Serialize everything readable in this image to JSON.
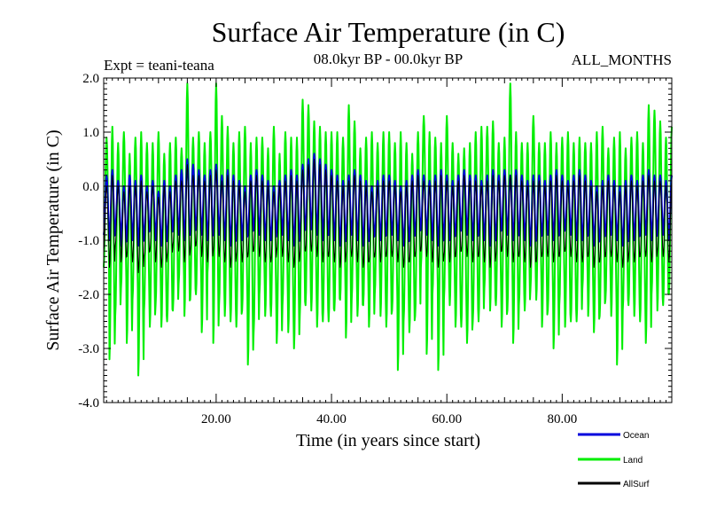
{
  "header": {
    "title": "Surface Air Temperature (in C)",
    "expt": "Expt = teani-teana",
    "period": "08.0kyr BP - 00.0kyr BP",
    "months": "ALL_MONTHS"
  },
  "chart_data": {
    "type": "line",
    "title": "Surface Air Temperature (in C)",
    "xlabel": "Time (in years since start)",
    "ylabel": "Surface Air Temperature (in C)",
    "xlim": [
      0.5,
      99
    ],
    "ylim": [
      -4.0,
      2.0
    ],
    "x_ticks": [
      20,
      40,
      60,
      80
    ],
    "x_tick_labels": [
      "20.00",
      "40.00",
      "60.00",
      "80.00"
    ],
    "y_ticks": [
      -4,
      -3,
      -2,
      -1,
      0,
      1,
      2
    ],
    "y_tick_labels": [
      "-4.0",
      "-3.0",
      "-2.0",
      "-1.0",
      "0.0",
      "1.0",
      "2.0"
    ],
    "zero_line": true,
    "samples_per_year": 12,
    "series": [
      {
        "name": "Land",
        "color": "#00ee00",
        "peaks": [
          0.9,
          1.1,
          0.8,
          1.0,
          0.6,
          0.9,
          1.0,
          0.8,
          0.8,
          1.0,
          0.6,
          0.8,
          0.9,
          0.7,
          1.9,
          0.9,
          1.0,
          0.8,
          1.0,
          1.9,
          1.3,
          1.1,
          0.8,
          1.0,
          1.1,
          0.8,
          0.9,
          0.9,
          0.7,
          1.1,
          0.6,
          1.0,
          0.9,
          0.9,
          1.6,
          1.5,
          1.2,
          1.1,
          1.0,
          1.0,
          1.0,
          0.9,
          1.5,
          1.2,
          0.7,
          0.9,
          1.0,
          0.8,
          1.0,
          1.0,
          0.8,
          1.0,
          0.8,
          0.6,
          1.0,
          1.3,
          1.0,
          0.9,
          0.8,
          1.3,
          0.8,
          0.6,
          0.7,
          0.8,
          1.0,
          1.1,
          1.1,
          1.2,
          0.8,
          0.9,
          1.9,
          1.0,
          0.8,
          0.8,
          1.3,
          0.8,
          0.8,
          1.0,
          0.8,
          0.9,
          1.0,
          0.8,
          0.9,
          0.8,
          0.8,
          1.0,
          1.1,
          0.7,
          0.9,
          1.0,
          0.7,
          0.9,
          1.0,
          0.8,
          1.5,
          1.4,
          1.2,
          0.9,
          1.1
        ],
        "troughs": [
          -1.5,
          -3.2,
          -2.4,
          -1.9,
          -2.9,
          -2.1,
          -3.5,
          -2.3,
          -2.6,
          -2.2,
          -2.6,
          -2.5,
          -2.3,
          -1.8,
          -2.4,
          -2.1,
          -2.0,
          -2.7,
          -1.6,
          -2.9,
          -2.2,
          -2.4,
          -2.5,
          -2.6,
          -2.3,
          -3.3,
          -2.7,
          -2.0,
          -2.4,
          -2.4,
          -2.9,
          -2.2,
          -2.7,
          -3.0,
          -2.4,
          -2.2,
          -2.3,
          -2.6,
          -2.5,
          -2.5,
          -2.3,
          -2.1,
          -2.8,
          -2.1,
          -2.4,
          -2.2,
          -2.6,
          -2.0,
          -2.4,
          -2.6,
          -2.3,
          -3.4,
          -2.5,
          -2.7,
          -2.4,
          -1.5,
          -3.1,
          -2.0,
          -3.4,
          -2.1,
          -2.2,
          -2.6,
          -2.6,
          -2.9,
          -2.5,
          -2.5,
          -1.9,
          -2.3,
          -2.2,
          -2.6,
          -2.3,
          -2.9,
          -2.2,
          -2.3,
          -1.9,
          -2.1,
          -2.6,
          -2.3,
          -3.0,
          -2.2,
          -2.6,
          -2.5,
          -2.5,
          -1.9,
          -2.4,
          -2.7,
          -2.4,
          -2.1,
          -2.4,
          -3.3,
          -2.3,
          -2.2,
          -2.4,
          -2.5,
          -2.9,
          -2.0,
          -2.3,
          -2.2,
          -2.0
        ]
      },
      {
        "name": "Ocean",
        "color": "#0000dd",
        "peaks": [
          0.2,
          0.3,
          0.1,
          0.0,
          0.2,
          0.1,
          0.2,
          0.0,
          0.1,
          -0.1,
          0.1,
          0.0,
          0.2,
          0.3,
          0.5,
          0.4,
          0.3,
          0.2,
          0.3,
          0.4,
          0.2,
          0.3,
          0.2,
          0.1,
          0.0,
          0.2,
          0.3,
          0.2,
          0.1,
          0.0,
          0.1,
          0.2,
          0.3,
          0.2,
          0.4,
          0.5,
          0.6,
          0.5,
          0.4,
          0.3,
          0.2,
          0.1,
          0.2,
          0.3,
          0.2,
          0.1,
          0.0,
          0.1,
          0.2,
          0.2,
          0.1,
          0.0,
          0.1,
          0.2,
          0.3,
          0.2,
          0.1,
          0.2,
          0.3,
          0.2,
          0.1,
          0.2,
          0.3,
          0.2,
          0.2,
          0.1,
          0.2,
          0.3,
          0.2,
          0.3,
          0.2,
          0.3,
          0.2,
          0.1,
          0.2,
          0.2,
          0.1,
          0.2,
          0.3,
          0.2,
          0.1,
          0.2,
          0.3,
          0.2,
          0.1,
          0.0,
          0.1,
          0.2,
          0.1,
          0.0,
          0.1,
          0.2,
          0.1,
          0.2,
          0.3,
          0.2,
          0.2,
          0.1,
          0.2
        ],
        "troughs": [
          -0.9,
          -1.0,
          -0.8,
          -1.1,
          -0.9,
          -1.0,
          -1.1,
          -0.9,
          -0.8,
          -1.0,
          -1.1,
          -0.9,
          -0.8,
          -0.9,
          -1.0,
          -0.9,
          -0.8,
          -0.9,
          -1.0,
          -0.8,
          -0.9,
          -1.0,
          -1.1,
          -0.9,
          -1.0,
          -0.9,
          -0.8,
          -0.9,
          -1.0,
          -1.0,
          -0.8,
          -0.9,
          -1.0,
          -1.1,
          -0.9,
          -0.8,
          -0.8,
          -0.9,
          -1.0,
          -0.9,
          -1.0,
          -1.1,
          -0.9,
          -0.9,
          -1.0,
          -1.1,
          -1.0,
          -0.9,
          -1.0,
          -0.9,
          -0.9,
          -1.0,
          -1.1,
          -1.0,
          -0.9,
          -0.8,
          -0.9,
          -1.0,
          -1.1,
          -0.9,
          -1.0,
          -0.9,
          -0.8,
          -0.9,
          -1.0,
          -0.9,
          -1.0,
          -1.1,
          -0.9,
          -0.8,
          -0.9,
          -1.0,
          -0.9,
          -1.0,
          -1.1,
          -1.0,
          -0.9,
          -0.9,
          -1.0,
          -0.9,
          -0.8,
          -0.9,
          -1.0,
          -1.0,
          -0.9,
          -1.1,
          -1.0,
          -0.9,
          -0.9,
          -1.0,
          -1.1,
          -0.9,
          -1.0,
          -0.9,
          -0.9,
          -1.0,
          -0.8,
          -0.9,
          -1.0
        ]
      },
      {
        "name": "AllSurf",
        "color": "#000000",
        "peaks": [
          0.0,
          0.2,
          0.0,
          -0.1,
          0.0,
          0.0,
          0.1,
          -0.1,
          0.0,
          -0.2,
          0.0,
          -0.1,
          0.1,
          0.1,
          0.4,
          0.2,
          0.2,
          0.1,
          0.2,
          0.3,
          0.1,
          0.2,
          0.1,
          0.0,
          -0.1,
          0.1,
          0.2,
          0.1,
          0.0,
          -0.1,
          0.0,
          0.1,
          0.2,
          0.1,
          0.3,
          0.4,
          0.5,
          0.4,
          0.3,
          0.2,
          0.1,
          0.0,
          0.1,
          0.2,
          0.1,
          0.0,
          -0.1,
          0.0,
          0.1,
          0.1,
          0.0,
          -0.1,
          0.0,
          0.1,
          0.2,
          0.1,
          0.0,
          0.1,
          0.2,
          0.1,
          0.0,
          0.1,
          0.2,
          0.1,
          0.1,
          0.0,
          0.1,
          0.2,
          0.1,
          0.2,
          0.2,
          0.2,
          0.1,
          0.0,
          0.1,
          0.1,
          0.0,
          0.1,
          0.2,
          0.1,
          0.0,
          0.1,
          0.2,
          0.1,
          0.0,
          -0.1,
          0.0,
          0.1,
          0.0,
          -0.1,
          0.0,
          0.1,
          0.0,
          0.1,
          0.2,
          0.1,
          0.1,
          0.0,
          0.1
        ],
        "troughs": [
          -1.2,
          -1.5,
          -1.1,
          -1.4,
          -1.3,
          -1.4,
          -1.6,
          -1.3,
          -1.2,
          -1.4,
          -1.5,
          -1.3,
          -1.1,
          -1.2,
          -1.4,
          -1.2,
          -1.1,
          -1.3,
          -1.4,
          -1.2,
          -1.3,
          -1.4,
          -1.5,
          -1.3,
          -1.4,
          -1.3,
          -1.2,
          -1.3,
          -1.4,
          -1.4,
          -1.2,
          -1.3,
          -1.4,
          -1.5,
          -1.3,
          -1.2,
          -1.2,
          -1.3,
          -1.4,
          -1.3,
          -1.4,
          -1.5,
          -1.3,
          -1.3,
          -1.4,
          -1.5,
          -1.4,
          -1.3,
          -1.4,
          -1.3,
          -1.3,
          -1.4,
          -1.5,
          -1.4,
          -1.3,
          -1.2,
          -1.3,
          -1.4,
          -1.5,
          -1.3,
          -1.4,
          -1.3,
          -1.2,
          -1.3,
          -1.4,
          -1.3,
          -1.4,
          -1.5,
          -1.3,
          -1.2,
          -1.3,
          -1.4,
          -1.3,
          -1.4,
          -1.5,
          -1.4,
          -1.3,
          -1.3,
          -1.4,
          -1.3,
          -1.2,
          -1.3,
          -1.4,
          -1.4,
          -1.3,
          -1.5,
          -1.4,
          -1.3,
          -1.3,
          -1.4,
          -1.5,
          -1.3,
          -1.4,
          -1.3,
          -1.3,
          -1.4,
          -1.2,
          -1.3,
          -1.4
        ]
      }
    ],
    "legend": {
      "position": "bottom-right",
      "entries": [
        {
          "label": "Ocean",
          "color": "#0000dd"
        },
        {
          "label": "Land",
          "color": "#00ee00"
        },
        {
          "label": "AllSurf",
          "color": "#000000"
        }
      ]
    }
  }
}
